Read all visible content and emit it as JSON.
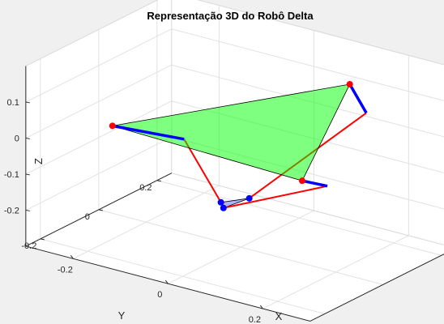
{
  "figure": {
    "background": "#f0f0f0",
    "axes_color": "#ffffff"
  },
  "chart_data": {
    "type": "3d-line",
    "title": "Representação 3D do Robô Delta",
    "xlabel": "X",
    "ylabel": "Y",
    "zlabel": "Z",
    "xlim": [
      -0.3,
      0.3
    ],
    "ylim": [
      -0.25,
      0.25
    ],
    "zlim": [
      -0.3,
      0.2
    ],
    "xticks": [
      -0.2,
      0,
      0.2
    ],
    "yticks": [
      -0.2,
      0,
      0.2
    ],
    "zticks": [
      -0.2,
      -0.1,
      0,
      0.1
    ],
    "xtick_labels": [
      "-0.2",
      "0",
      "0.2"
    ],
    "ytick_labels": [
      "-0.2",
      "0",
      "0.2"
    ],
    "ztick_labels": [
      "-0.2",
      "-0.1",
      "0",
      "0.1"
    ],
    "grid": true,
    "view": {
      "azimuth": -37.5,
      "elevation": 30
    },
    "base_platform": {
      "color": "#00ff00",
      "opacity": 0.5,
      "vertices": [
        [
          0.061,
          0.274,
          0.062
        ],
        [
          0.2,
          -0.115,
          0.0
        ],
        [
          -0.199,
          -0.117,
          0.015
        ]
      ]
    },
    "effector_platform": {
      "color": "#0000ff",
      "opacity": 0.3,
      "vertices": [
        [
          -0.017,
          -0.041,
          -0.165
        ],
        [
          0.013,
          -0.081,
          -0.154
        ],
        [
          0.025,
          -0.012,
          -0.151
        ]
      ]
    },
    "upper_arms": {
      "color": "#0000ff",
      "segments": [
        [
          [
            0.061,
            0.274,
            0.062
          ],
          [
            0.171,
            0.152,
            0.07
          ]
        ],
        [
          [
            0.2,
            -0.115,
            0.0
          ],
          [
            0.135,
            0.077,
            -0.115
          ]
        ],
        [
          [
            -0.199,
            -0.117,
            0.015
          ],
          [
            -0.078,
            -0.068,
            0.0
          ]
        ]
      ]
    },
    "lower_arms": {
      "color": "#ff0000",
      "segments": [
        [
          [
            0.171,
            0.152,
            0.07
          ],
          [
            0.025,
            -0.012,
            -0.151
          ]
        ],
        [
          [
            0.135,
            0.077,
            -0.115
          ],
          [
            0.013,
            -0.081,
            -0.154
          ]
        ],
        [
          [
            -0.078,
            -0.068,
            0.0
          ],
          [
            -0.017,
            -0.041,
            -0.165
          ]
        ]
      ]
    },
    "joint_markers": {
      "base_color": "#ff0000",
      "effector_color": "#0000ff"
    }
  }
}
